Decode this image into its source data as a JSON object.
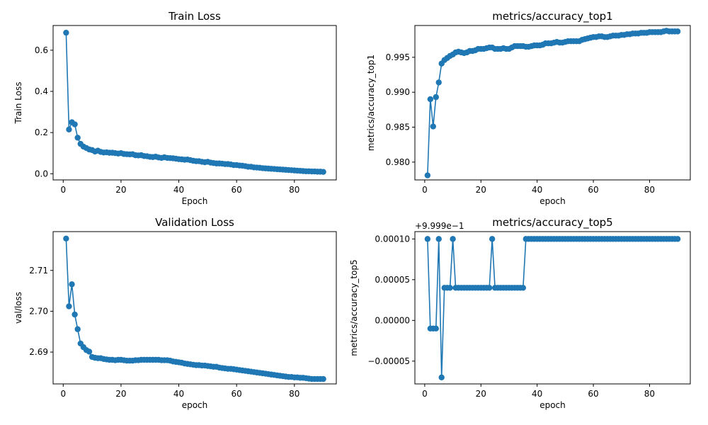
{
  "colors": {
    "series": "#1f77b4"
  },
  "chart_data": [
    {
      "type": "line",
      "title": "Train Loss",
      "xlabel": "Epoch",
      "ylabel": "Train Loss",
      "xlim": [
        -3.5,
        94.5
      ],
      "ylim": [
        -0.03,
        0.72
      ],
      "xticks": [
        0,
        20,
        40,
        60,
        80
      ],
      "yticks": [
        0.0,
        0.2,
        0.4,
        0.6
      ],
      "ytick_labels": [
        "0.0",
        "0.2",
        "0.4",
        "0.6"
      ],
      "y_offset_label": "",
      "x": [
        1,
        2,
        3,
        4,
        5,
        6,
        7,
        8,
        9,
        10,
        11,
        12,
        13,
        14,
        15,
        16,
        17,
        18,
        19,
        20,
        21,
        22,
        23,
        24,
        25,
        26,
        27,
        28,
        29,
        30,
        31,
        32,
        33,
        34,
        35,
        36,
        37,
        38,
        39,
        40,
        41,
        42,
        43,
        44,
        45,
        46,
        47,
        48,
        49,
        50,
        51,
        52,
        53,
        54,
        55,
        56,
        57,
        58,
        59,
        60,
        61,
        62,
        63,
        64,
        65,
        66,
        67,
        68,
        69,
        70,
        71,
        72,
        73,
        74,
        75,
        76,
        77,
        78,
        79,
        80,
        81,
        82,
        83,
        84,
        85,
        86,
        87,
        88,
        89,
        90
      ],
      "series": [
        {
          "values": [
            0.685,
            0.215,
            0.25,
            0.24,
            0.175,
            0.145,
            0.132,
            0.125,
            0.118,
            0.115,
            0.108,
            0.112,
            0.106,
            0.103,
            0.104,
            0.102,
            0.102,
            0.1,
            0.098,
            0.1,
            0.096,
            0.095,
            0.094,
            0.095,
            0.09,
            0.089,
            0.09,
            0.086,
            0.085,
            0.082,
            0.081,
            0.083,
            0.079,
            0.077,
            0.08,
            0.077,
            0.076,
            0.075,
            0.073,
            0.071,
            0.07,
            0.068,
            0.069,
            0.066,
            0.063,
            0.061,
            0.061,
            0.058,
            0.056,
            0.058,
            0.054,
            0.052,
            0.05,
            0.05,
            0.049,
            0.047,
            0.047,
            0.045,
            0.042,
            0.042,
            0.04,
            0.039,
            0.037,
            0.034,
            0.034,
            0.031,
            0.03,
            0.029,
            0.027,
            0.026,
            0.025,
            0.024,
            0.023,
            0.022,
            0.021,
            0.02,
            0.019,
            0.018,
            0.017,
            0.016,
            0.015,
            0.014,
            0.013,
            0.012,
            0.012,
            0.011,
            0.011,
            0.01,
            0.01,
            0.009
          ]
        }
      ]
    },
    {
      "type": "line",
      "title": "metrics/accuracy_top1",
      "xlabel": "epoch",
      "ylabel": "metrics/accuracy_top1",
      "xlim": [
        -3.5,
        94.5
      ],
      "ylim": [
        0.97745,
        0.99955
      ],
      "xticks": [
        0,
        20,
        40,
        60,
        80
      ],
      "yticks": [
        0.98,
        0.985,
        0.99,
        0.995
      ],
      "ytick_labels": [
        "0.980",
        "0.985",
        "0.990",
        "0.995"
      ],
      "y_offset_label": "",
      "x": [
        1,
        2,
        3,
        4,
        5,
        6,
        7,
        8,
        9,
        10,
        11,
        12,
        13,
        14,
        15,
        16,
        17,
        18,
        19,
        20,
        21,
        22,
        23,
        24,
        25,
        26,
        27,
        28,
        29,
        30,
        31,
        32,
        33,
        34,
        35,
        36,
        37,
        38,
        39,
        40,
        41,
        42,
        43,
        44,
        45,
        46,
        47,
        48,
        49,
        50,
        51,
        52,
        53,
        54,
        55,
        56,
        57,
        58,
        59,
        60,
        61,
        62,
        63,
        64,
        65,
        66,
        67,
        68,
        69,
        70,
        71,
        72,
        73,
        74,
        75,
        76,
        77,
        78,
        79,
        80,
        81,
        82,
        83,
        84,
        85,
        86,
        87,
        88,
        89,
        90
      ],
      "series": [
        {
          "values": [
            0.9781,
            0.989,
            0.9851,
            0.9893,
            0.9914,
            0.9941,
            0.9946,
            0.9949,
            0.9952,
            0.9954,
            0.9957,
            0.9958,
            0.9957,
            0.9956,
            0.9957,
            0.9959,
            0.9959,
            0.996,
            0.9962,
            0.9962,
            0.9962,
            0.9963,
            0.9964,
            0.9964,
            0.9962,
            0.9962,
            0.9962,
            0.9963,
            0.9962,
            0.9962,
            0.9964,
            0.9966,
            0.9966,
            0.9966,
            0.9966,
            0.9965,
            0.9965,
            0.9966,
            0.9967,
            0.9967,
            0.9967,
            0.9968,
            0.997,
            0.997,
            0.997,
            0.9971,
            0.9972,
            0.9971,
            0.9971,
            0.9972,
            0.9973,
            0.9973,
            0.9973,
            0.9973,
            0.9973,
            0.9975,
            0.9976,
            0.9977,
            0.9978,
            0.9979,
            0.9979,
            0.998,
            0.998,
            0.9979,
            0.9979,
            0.998,
            0.9981,
            0.9981,
            0.9981,
            0.9982,
            0.9982,
            0.9983,
            0.9983,
            0.9984,
            0.9984,
            0.9984,
            0.9985,
            0.9985,
            0.9985,
            0.9986,
            0.9986,
            0.9986,
            0.9986,
            0.9986,
            0.9987,
            0.9988,
            0.9987,
            0.9987,
            0.9987,
            0.9987
          ]
        }
      ]
    },
    {
      "type": "line",
      "title": "Validation Loss",
      "xlabel": "epoch",
      "ylabel": "val/loss",
      "xlim": [
        -3.5,
        94.5
      ],
      "ylim": [
        2.6822,
        2.7195
      ],
      "xticks": [
        0,
        20,
        40,
        60,
        80
      ],
      "yticks": [
        2.69,
        2.7,
        2.71
      ],
      "ytick_labels": [
        "2.69",
        "2.70",
        "2.71"
      ],
      "y_offset_label": "",
      "x": [
        1,
        2,
        3,
        4,
        5,
        6,
        7,
        8,
        9,
        10,
        11,
        12,
        13,
        14,
        15,
        16,
        17,
        18,
        19,
        20,
        21,
        22,
        23,
        24,
        25,
        26,
        27,
        28,
        29,
        30,
        31,
        32,
        33,
        34,
        35,
        36,
        37,
        38,
        39,
        40,
        41,
        42,
        43,
        44,
        45,
        46,
        47,
        48,
        49,
        50,
        51,
        52,
        53,
        54,
        55,
        56,
        57,
        58,
        59,
        60,
        61,
        62,
        63,
        64,
        65,
        66,
        67,
        68,
        69,
        70,
        71,
        72,
        73,
        74,
        75,
        76,
        77,
        78,
        79,
        80,
        81,
        82,
        83,
        84,
        85,
        86,
        87,
        88,
        89,
        90
      ],
      "series": [
        {
          "values": [
            2.7178,
            2.7012,
            2.7066,
            2.6992,
            2.6956,
            2.6921,
            2.6912,
            2.6905,
            2.6901,
            2.6888,
            2.6886,
            2.6885,
            2.6885,
            2.6883,
            2.6882,
            2.6881,
            2.6881,
            2.688,
            2.6881,
            2.6881,
            2.688,
            2.6879,
            2.6879,
            2.6879,
            2.688,
            2.688,
            2.6881,
            2.6881,
            2.6881,
            2.6881,
            2.6881,
            2.6881,
            2.6881,
            2.688,
            2.688,
            2.688,
            2.6879,
            2.6877,
            2.6876,
            2.6875,
            2.6874,
            2.6872,
            2.6871,
            2.687,
            2.6869,
            2.6868,
            2.6868,
            2.6867,
            2.6867,
            2.6866,
            2.6865,
            2.6864,
            2.6864,
            2.6862,
            2.6861,
            2.686,
            2.6859,
            2.6859,
            2.6858,
            2.6857,
            2.6856,
            2.6855,
            2.6854,
            2.6853,
            2.6852,
            2.6851,
            2.685,
            2.6849,
            2.6848,
            2.6847,
            2.6846,
            2.6845,
            2.6844,
            2.6843,
            2.6842,
            2.6841,
            2.684,
            2.6839,
            2.6839,
            2.6838,
            2.6838,
            2.6837,
            2.6837,
            2.6836,
            2.6835,
            2.6834,
            2.6834,
            2.6834,
            2.6834,
            2.6834
          ]
        }
      ]
    },
    {
      "type": "line",
      "title": "metrics/accuracy_top5",
      "xlabel": "epoch",
      "ylabel": "metrics/accuracy_top5",
      "xlim": [
        -3.5,
        94.5
      ],
      "ylim": [
        -7.8e-05,
        0.000109
      ],
      "xticks": [
        0,
        20,
        40,
        60,
        80
      ],
      "yticks": [
        -5e-05,
        0.0,
        5e-05,
        0.0001
      ],
      "ytick_labels": [
        "−0.00005",
        "0.00000",
        "0.00005",
        "0.00010"
      ],
      "y_offset_label": "+9.999e−1",
      "x": [
        1,
        2,
        3,
        4,
        5,
        6,
        7,
        8,
        9,
        10,
        11,
        12,
        13,
        14,
        15,
        16,
        17,
        18,
        19,
        20,
        21,
        22,
        23,
        24,
        25,
        26,
        27,
        28,
        29,
        30,
        31,
        32,
        33,
        34,
        35,
        36,
        37,
        38,
        39,
        40,
        41,
        42,
        43,
        44,
        45,
        46,
        47,
        48,
        49,
        50,
        51,
        52,
        53,
        54,
        55,
        56,
        57,
        58,
        59,
        60,
        61,
        62,
        63,
        64,
        65,
        66,
        67,
        68,
        69,
        70,
        71,
        72,
        73,
        74,
        75,
        76,
        77,
        78,
        79,
        80,
        81,
        82,
        83,
        84,
        85,
        86,
        87,
        88,
        89,
        90
      ],
      "series": [
        {
          "values": [
            0.0001,
            -1e-05,
            -1e-05,
            -1e-05,
            0.0001,
            -7e-05,
            4e-05,
            4e-05,
            4e-05,
            0.0001,
            4e-05,
            4e-05,
            4e-05,
            4e-05,
            4e-05,
            4e-05,
            4e-05,
            4e-05,
            4e-05,
            4e-05,
            4e-05,
            4e-05,
            4e-05,
            0.0001,
            4e-05,
            4e-05,
            4e-05,
            4e-05,
            4e-05,
            4e-05,
            4e-05,
            4e-05,
            4e-05,
            4e-05,
            4e-05,
            0.0001,
            0.0001,
            0.0001,
            0.0001,
            0.0001,
            0.0001,
            0.0001,
            0.0001,
            0.0001,
            0.0001,
            0.0001,
            0.0001,
            0.0001,
            0.0001,
            0.0001,
            0.0001,
            0.0001,
            0.0001,
            0.0001,
            0.0001,
            0.0001,
            0.0001,
            0.0001,
            0.0001,
            0.0001,
            0.0001,
            0.0001,
            0.0001,
            0.0001,
            0.0001,
            0.0001,
            0.0001,
            0.0001,
            0.0001,
            0.0001,
            0.0001,
            0.0001,
            0.0001,
            0.0001,
            0.0001,
            0.0001,
            0.0001,
            0.0001,
            0.0001,
            0.0001,
            0.0001,
            0.0001,
            0.0001,
            0.0001,
            0.0001,
            0.0001,
            0.0001,
            0.0001,
            0.0001,
            0.0001
          ]
        }
      ]
    }
  ]
}
